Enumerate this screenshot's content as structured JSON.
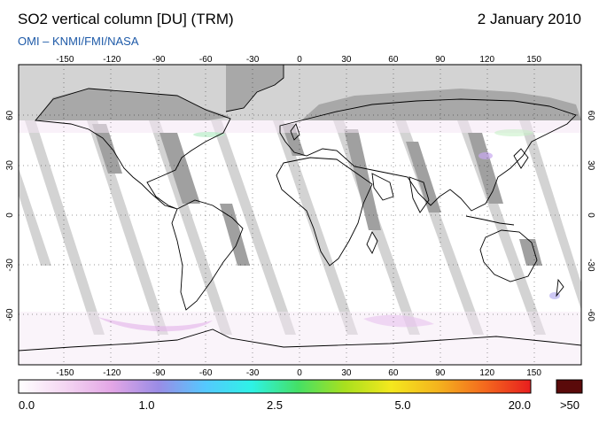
{
  "header": {
    "title": "SO2 vertical column [DU] (TRM)",
    "date": "2 January 2010",
    "credit": "OMI  –  KNMI/FMI/NASA"
  },
  "map": {
    "lon_ticks": [
      "-150",
      "-120",
      "-90",
      "-60",
      "-30",
      "0",
      "30",
      "60",
      "90",
      "120",
      "150"
    ],
    "lat_ticks": [
      "60",
      "30",
      "0",
      "-30",
      "-60"
    ],
    "colors": {
      "no_data": "#d3d3d3",
      "land_shade": "#a0a0a0",
      "background": "#ffffff",
      "coast": "#000000"
    }
  },
  "colorbar": {
    "labels": [
      "0.0",
      "1.0",
      "2.5",
      "5.0",
      "20.0"
    ],
    "overflow_label": ">50",
    "overflow_color": "#5a0a0a",
    "stops": [
      "#ffffff",
      "#f4d6f2",
      "#e3a6e6",
      "#9a8ce6",
      "#55c8ff",
      "#2ef2e6",
      "#44e066",
      "#a8e01e",
      "#f4e81e",
      "#f4b41e",
      "#f46a1e",
      "#e81e1e"
    ]
  }
}
